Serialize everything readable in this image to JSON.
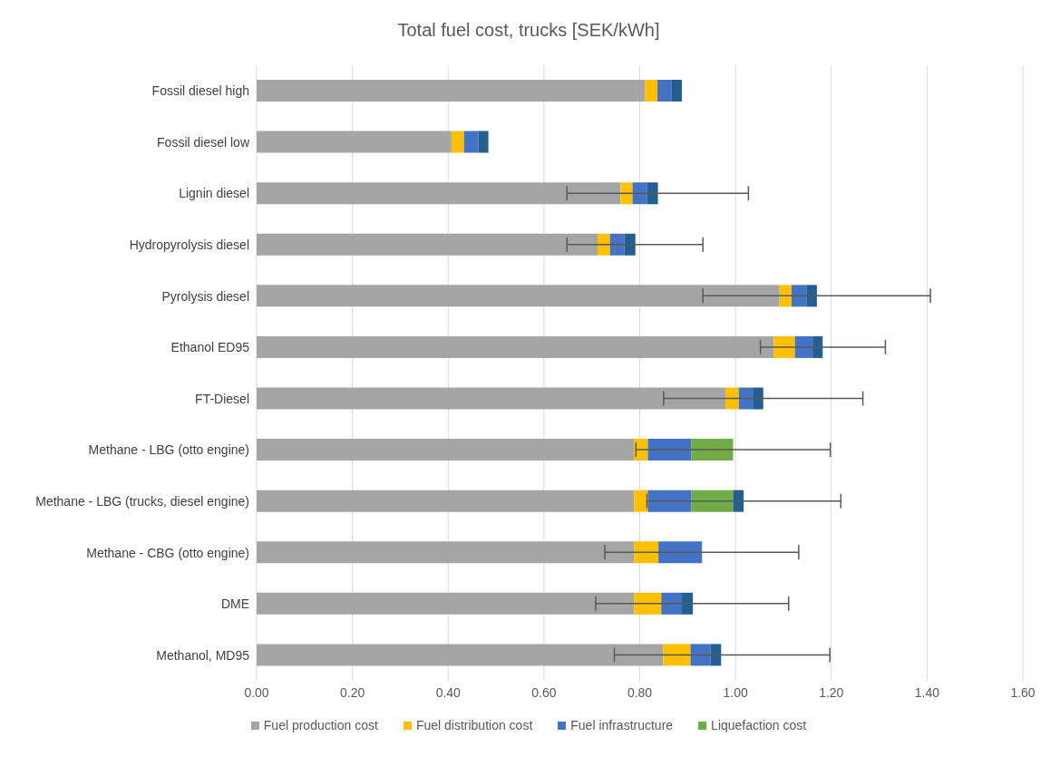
{
  "chart_data": {
    "type": "bar",
    "orientation": "horizontal",
    "stacked": true,
    "title": "Total fuel cost, trucks [SEK/kWh]",
    "categories": [
      "Fossil diesel high",
      "Fossil diesel low",
      "Lignin diesel",
      "Hydropyrolysis diesel",
      "Pyrolysis diesel",
      "Ethanol ED95",
      "FT-Diesel",
      "Methane - LBG (otto engine)",
      "Methane - LBG (trucks, diesel engine)",
      "Methane - CBG (otto engine)",
      "DME",
      "Methanol, MD95"
    ],
    "series": [
      {
        "name": "Fuel production cost",
        "color": "#a5a5a5",
        "values": [
          0.811,
          0.407,
          0.76,
          0.712,
          1.092,
          1.08,
          0.979,
          0.788,
          0.788,
          0.788,
          0.788,
          0.849
        ]
      },
      {
        "name": "Fuel distribution cost",
        "color": "#ffc000",
        "values": [
          0.026,
          0.026,
          0.025,
          0.026,
          0.025,
          0.044,
          0.028,
          0.029,
          0.029,
          0.051,
          0.057,
          0.057
        ]
      },
      {
        "name": "Fuel infrastructure",
        "color": "#4472c4",
        "values": [
          0.03,
          0.03,
          0.03,
          0.03,
          0.031,
          0.037,
          0.029,
          0.091,
          0.091,
          0.091,
          0.043,
          0.042
        ],
        "errors": [
          null,
          null,
          null,
          null,
          null,
          null,
          null,
          null,
          null,
          [
            0.727,
            1.132
          ],
          null,
          null
        ]
      },
      {
        "name": "Liquefaction cost",
        "color": "#70ad47",
        "values": [
          null,
          null,
          null,
          null,
          null,
          null,
          null,
          0.087,
          0.087,
          null,
          null,
          null
        ],
        "errors": [
          null,
          null,
          null,
          null,
          null,
          null,
          null,
          [
            0.792,
            1.198
          ],
          null,
          null,
          null,
          null
        ]
      },
      {
        "color": "#255e91",
        "values": [
          0.021,
          0.021,
          0.023,
          0.023,
          0.022,
          0.021,
          0.022,
          null,
          0.022,
          null,
          0.023,
          0.022
        ],
        "errors": [
          null,
          null,
          [
            0.648,
            1.027
          ],
          [
            0.648,
            0.932
          ],
          [
            0.932,
            1.407
          ],
          [
            1.052,
            1.313
          ],
          [
            0.85,
            1.266
          ],
          null,
          [
            0.815,
            1.22
          ],
          null,
          [
            0.708,
            1.111
          ],
          [
            0.747,
            1.197
          ]
        ]
      }
    ],
    "xlim": [
      0,
      1.6
    ],
    "xticks": [
      {
        "value": 0,
        "label": "0.00"
      },
      {
        "value": 0.2,
        "label": "0.20"
      },
      {
        "value": 0.4,
        "label": "0.40"
      },
      {
        "value": 0.6,
        "label": "0.60"
      },
      {
        "value": 0.8,
        "label": "0.80"
      },
      {
        "value": 1,
        "label": "1.00"
      },
      {
        "value": 1.2,
        "label": "1.20"
      },
      {
        "value": 1.4,
        "label": "1.40"
      },
      {
        "value": 1.6,
        "label": "1.60"
      }
    ],
    "grid": "x",
    "legend": "bottom"
  }
}
